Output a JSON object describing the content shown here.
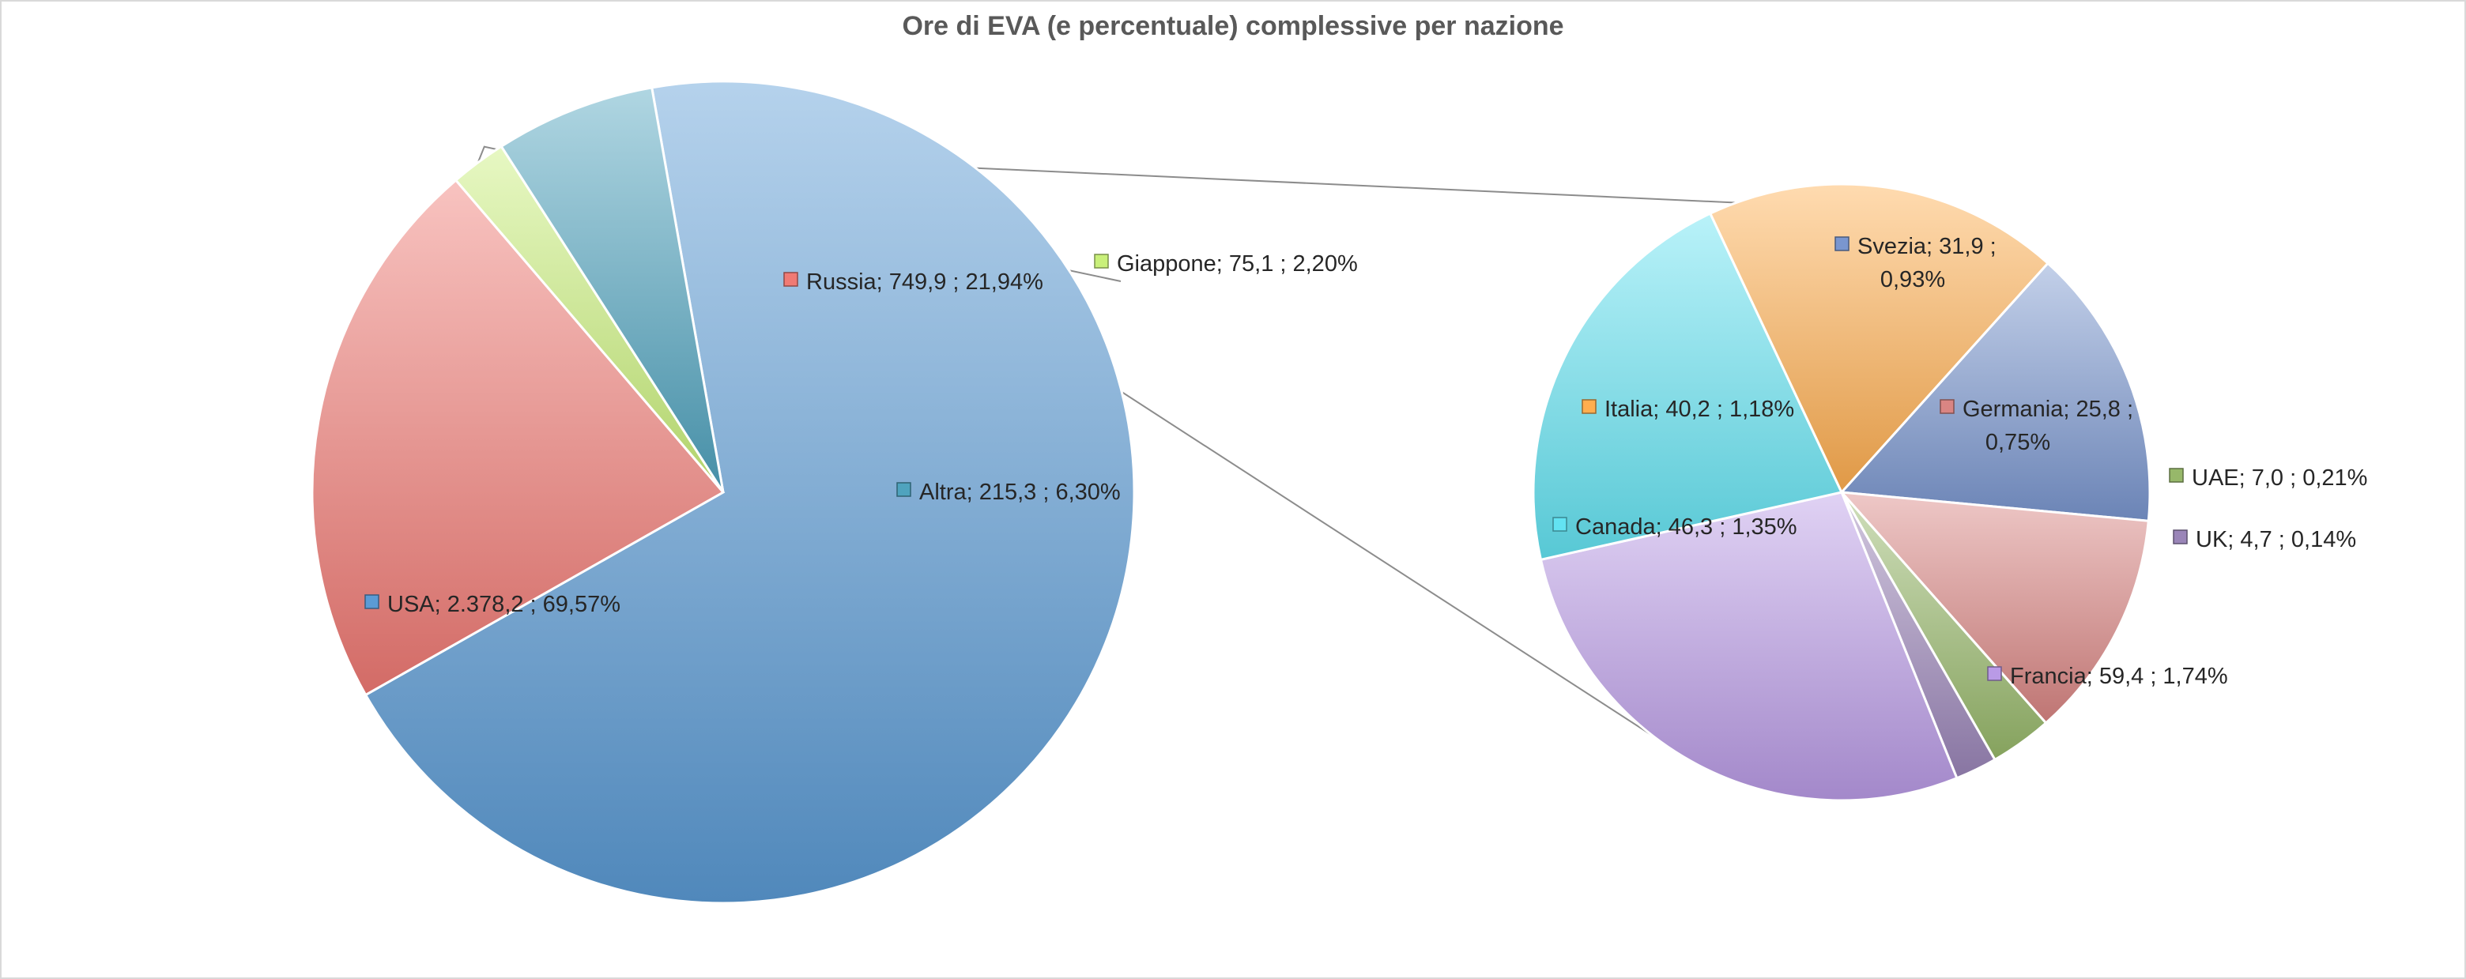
{
  "chart_data": {
    "type": "pie",
    "title": "Ore di EVA (e percentuale) complessive per nazione",
    "subtype": "pie-of-pie",
    "main_pie": [
      {
        "name": "USA",
        "value": 2378.2,
        "label": "USA;  2.378,2 ; 69,57%",
        "color": "#5b9bd5"
      },
      {
        "name": "Russia",
        "value": 749.9,
        "label": "Russia;  749,9 ; 21,94%",
        "color": "#f07a74"
      },
      {
        "name": "Giappone",
        "value": 75.1,
        "label": "Giappone;  75,1 ; 2,20%",
        "color": "#c9f07a"
      },
      {
        "name": "Altra",
        "value": 215.3,
        "label": "Altra;  215,3 ; 6,30%",
        "color": "#4fa3be"
      }
    ],
    "secondary_pie": [
      {
        "name": "Svezia",
        "value": 31.9,
        "label": "Svezia;  31,9 ;\n0,93%",
        "color": "#7a96cf"
      },
      {
        "name": "Germania",
        "value": 25.8,
        "label": "Germania;  25,8 ;\n0,75%",
        "color": "#d98583"
      },
      {
        "name": "UAE",
        "value": 7.0,
        "label": "UAE;  7,0 ; 0,21%",
        "color": "#97b86a"
      },
      {
        "name": "UK",
        "value": 4.7,
        "label": "UK;  4,7 ; 0,14%",
        "color": "#9a85b8"
      },
      {
        "name": "Francia",
        "value": 59.4,
        "label": "Francia;  59,4 ; 1,74%",
        "color": "#b99ae6"
      },
      {
        "name": "Canada",
        "value": 46.3,
        "label": "Canada;  46,3 ; 1,35%",
        "color": "#63e3f2"
      },
      {
        "name": "Italia",
        "value": 40.2,
        "label": "Italia;  40,2 ; 1,18%",
        "color": "#ffae4f"
      }
    ],
    "legend": "none"
  }
}
